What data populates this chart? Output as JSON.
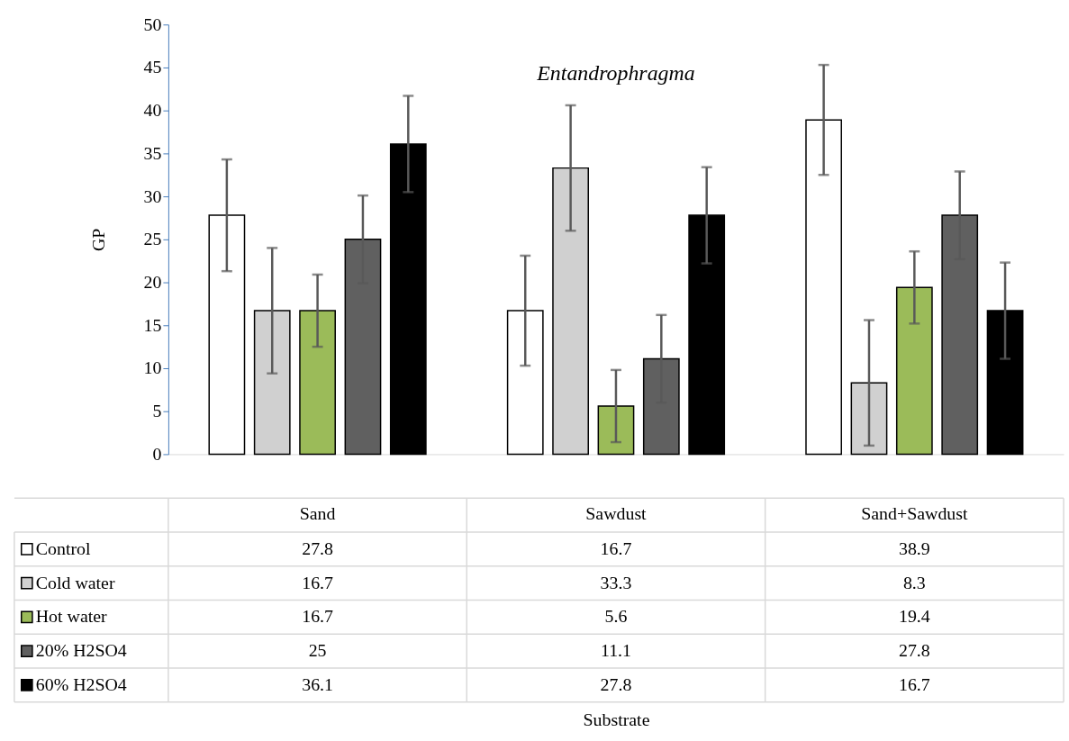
{
  "chart_data": {
    "type": "bar",
    "title": "Entandrophragma",
    "annotations": [
      "Substrate"
    ],
    "ylabel": "GP",
    "categories": [
      "Sand",
      "Sawdust",
      "Sand+Sawdust"
    ],
    "series": [
      {
        "name": "Control",
        "color": "#ffffff",
        "values": [
          27.8,
          16.7,
          38.9
        ],
        "errors": [
          6.5,
          6.4,
          6.4
        ]
      },
      {
        "name": "Cold water",
        "color": "#d0d0d0",
        "values": [
          16.7,
          33.3,
          8.3
        ],
        "errors": [
          7.3,
          7.3,
          7.3
        ]
      },
      {
        "name": "Hot water",
        "color": "#9bbb59",
        "values": [
          16.7,
          5.6,
          19.4
        ],
        "errors": [
          4.2,
          4.2,
          4.2
        ]
      },
      {
        "name": "20% H2SO4",
        "color": "#606060",
        "values": [
          25,
          11.1,
          27.8
        ],
        "errors": [
          5.1,
          5.1,
          5.1
        ]
      },
      {
        "name": "60% H2SO4",
        "color": "#000000",
        "values": [
          36.1,
          27.8,
          16.7
        ],
        "errors": [
          5.6,
          5.6,
          5.6
        ]
      }
    ],
    "ylim": [
      0,
      50
    ],
    "yticks": [
      0,
      5,
      10,
      15,
      20,
      25,
      30,
      35,
      40,
      45,
      50
    ],
    "grid": false,
    "legend": "bottom",
    "data_labels": true
  }
}
